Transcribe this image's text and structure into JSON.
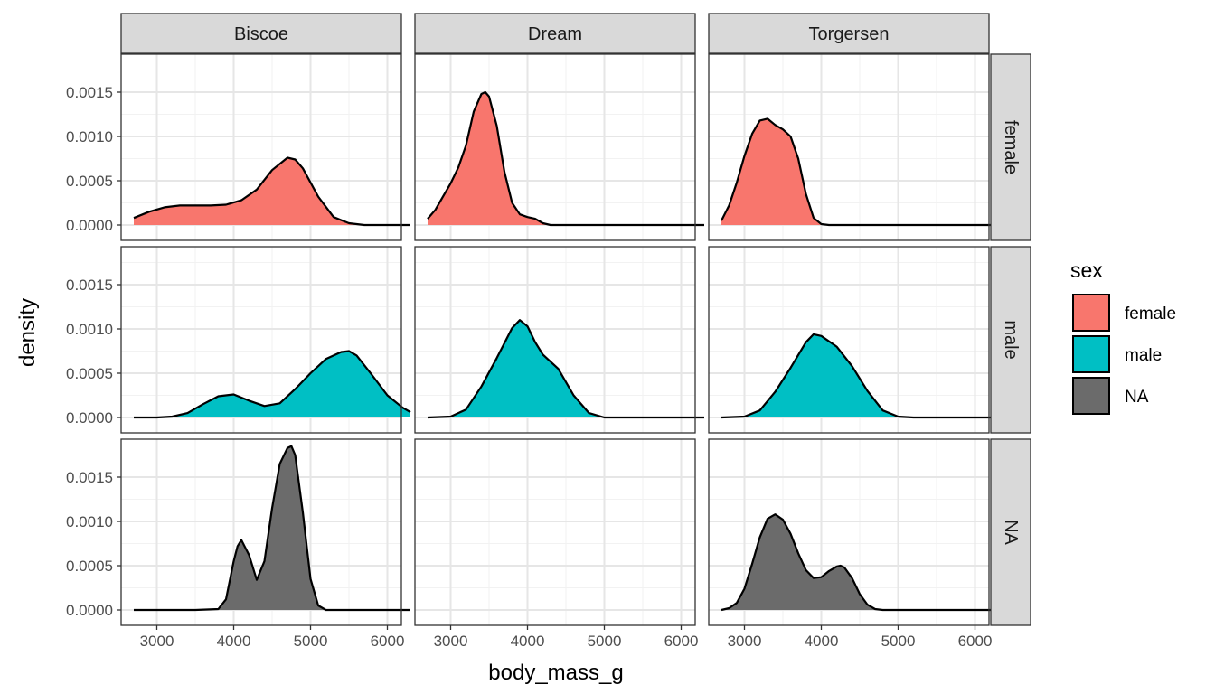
{
  "chart_data": {
    "type": "area",
    "subtype": "faceted density plot",
    "facet_columns": [
      "Biscoe",
      "Dream",
      "Torgersen"
    ],
    "facet_rows": [
      "female",
      "male",
      "NA"
    ],
    "xlabel": "body_mass_g",
    "ylabel": "density",
    "x_ticks": [
      3000,
      4000,
      5000,
      6000
    ],
    "x_tick_labels": [
      "3000",
      "4000",
      "5000",
      "6000"
    ],
    "xlim": [
      2700,
      6300
    ],
    "y_ticks": [
      0,
      0.0005,
      0.001,
      0.0015
    ],
    "y_tick_labels": [
      "0.0000",
      "0.0005",
      "0.0010",
      "0.0015"
    ],
    "ylim": [
      0,
      0.00195
    ],
    "legend": {
      "title": "sex",
      "position": "right",
      "entries": [
        {
          "label": "female",
          "color": "#F8766D"
        },
        {
          "label": "male",
          "color": "#00BFC4"
        },
        {
          "label": "NA",
          "color": "#6b6b6b"
        }
      ]
    },
    "grid": true,
    "panels": [
      {
        "island": "Biscoe",
        "sex": "female",
        "x": [
          2700,
          2900,
          3100,
          3300,
          3500,
          3700,
          3900,
          4100,
          4300,
          4500,
          4700,
          4800,
          4900,
          5100,
          5300,
          5500,
          5700,
          5900,
          6100,
          6300
        ],
        "y": [
          8e-05,
          0.00015,
          0.0002,
          0.00022,
          0.00022,
          0.00022,
          0.00023,
          0.00028,
          0.0004,
          0.00062,
          0.00076,
          0.00074,
          0.00064,
          0.00032,
          9e-05,
          2e-05,
          0,
          0,
          0,
          0
        ]
      },
      {
        "island": "Dream",
        "sex": "female",
        "x": [
          2700,
          2800,
          2900,
          3000,
          3100,
          3200,
          3300,
          3400,
          3450,
          3500,
          3600,
          3700,
          3800,
          3900,
          4000,
          4100,
          4200,
          4300,
          4500,
          5000,
          6300
        ],
        "y": [
          7e-05,
          0.00017,
          0.00032,
          0.00047,
          0.00065,
          0.0009,
          0.00128,
          0.00148,
          0.0015,
          0.00145,
          0.00112,
          0.0006,
          0.00025,
          0.00012,
          9e-05,
          7e-05,
          2e-05,
          0,
          0,
          0,
          0
        ]
      },
      {
        "island": "Torgersen",
        "sex": "female",
        "x": [
          2700,
          2800,
          2900,
          3000,
          3100,
          3200,
          3300,
          3400,
          3500,
          3600,
          3700,
          3800,
          3900,
          4000,
          4100,
          4300,
          4500,
          6300
        ],
        "y": [
          5e-05,
          0.00022,
          0.00048,
          0.00078,
          0.00103,
          0.00118,
          0.0012,
          0.00113,
          0.00108,
          0.001,
          0.00075,
          0.00035,
          8e-05,
          1e-05,
          0,
          0,
          0,
          0
        ]
      },
      {
        "island": "Biscoe",
        "sex": "male",
        "x": [
          2700,
          3000,
          3200,
          3400,
          3600,
          3800,
          4000,
          4200,
          4400,
          4600,
          4800,
          5000,
          5200,
          5400,
          5500,
          5600,
          5800,
          6000,
          6200,
          6300
        ],
        "y": [
          0,
          0,
          1e-05,
          5e-05,
          0.00015,
          0.00024,
          0.00026,
          0.00019,
          0.00013,
          0.00016,
          0.00032,
          0.0005,
          0.00066,
          0.00074,
          0.00075,
          0.0007,
          0.00048,
          0.00025,
          0.00011,
          6e-05
        ]
      },
      {
        "island": "Dream",
        "sex": "male",
        "x": [
          2700,
          3000,
          3200,
          3400,
          3600,
          3800,
          3900,
          4000,
          4100,
          4200,
          4400,
          4600,
          4800,
          5000,
          5200,
          6300
        ],
        "y": [
          0,
          1e-05,
          9e-05,
          0.00035,
          0.00067,
          0.00101,
          0.0011,
          0.00103,
          0.00085,
          0.00071,
          0.00055,
          0.00025,
          5e-05,
          0,
          0,
          0
        ]
      },
      {
        "island": "Torgersen",
        "sex": "male",
        "x": [
          2700,
          3000,
          3200,
          3400,
          3600,
          3800,
          3900,
          4000,
          4200,
          4400,
          4600,
          4800,
          5000,
          5200,
          6300
        ],
        "y": [
          0,
          1e-05,
          8e-05,
          0.00029,
          0.00056,
          0.00085,
          0.00094,
          0.00092,
          0.0008,
          0.00058,
          0.0003,
          8e-05,
          1e-05,
          0,
          0
        ]
      },
      {
        "island": "Biscoe",
        "sex": "NA",
        "x": [
          2700,
          3500,
          3800,
          3900,
          4000,
          4050,
          4100,
          4200,
          4300,
          4400,
          4500,
          4600,
          4700,
          4750,
          4800,
          4900,
          5000,
          5100,
          5200,
          6300
        ],
        "y": [
          0,
          0,
          1e-05,
          0.00012,
          0.00055,
          0.00072,
          0.00079,
          0.00062,
          0.00034,
          0.00055,
          0.00115,
          0.00165,
          0.00183,
          0.00185,
          0.00175,
          0.0011,
          0.00035,
          5e-05,
          0,
          0
        ]
      },
      {
        "island": "Dream",
        "sex": "NA",
        "x": [],
        "y": []
      },
      {
        "island": "Torgersen",
        "sex": "NA",
        "x": [
          2700,
          2800,
          2900,
          3000,
          3100,
          3200,
          3300,
          3400,
          3500,
          3600,
          3700,
          3800,
          3900,
          4000,
          4100,
          4200,
          4250,
          4300,
          4400,
          4500,
          4600,
          4700,
          4800,
          5000,
          6300
        ],
        "y": [
          0,
          2e-05,
          8e-05,
          0.00024,
          0.00052,
          0.00082,
          0.00103,
          0.00108,
          0.00102,
          0.00086,
          0.00064,
          0.00045,
          0.00036,
          0.00037,
          0.00044,
          0.00049,
          0.0005,
          0.00048,
          0.00036,
          0.00018,
          6e-05,
          1e-05,
          0,
          0,
          0
        ]
      }
    ]
  }
}
